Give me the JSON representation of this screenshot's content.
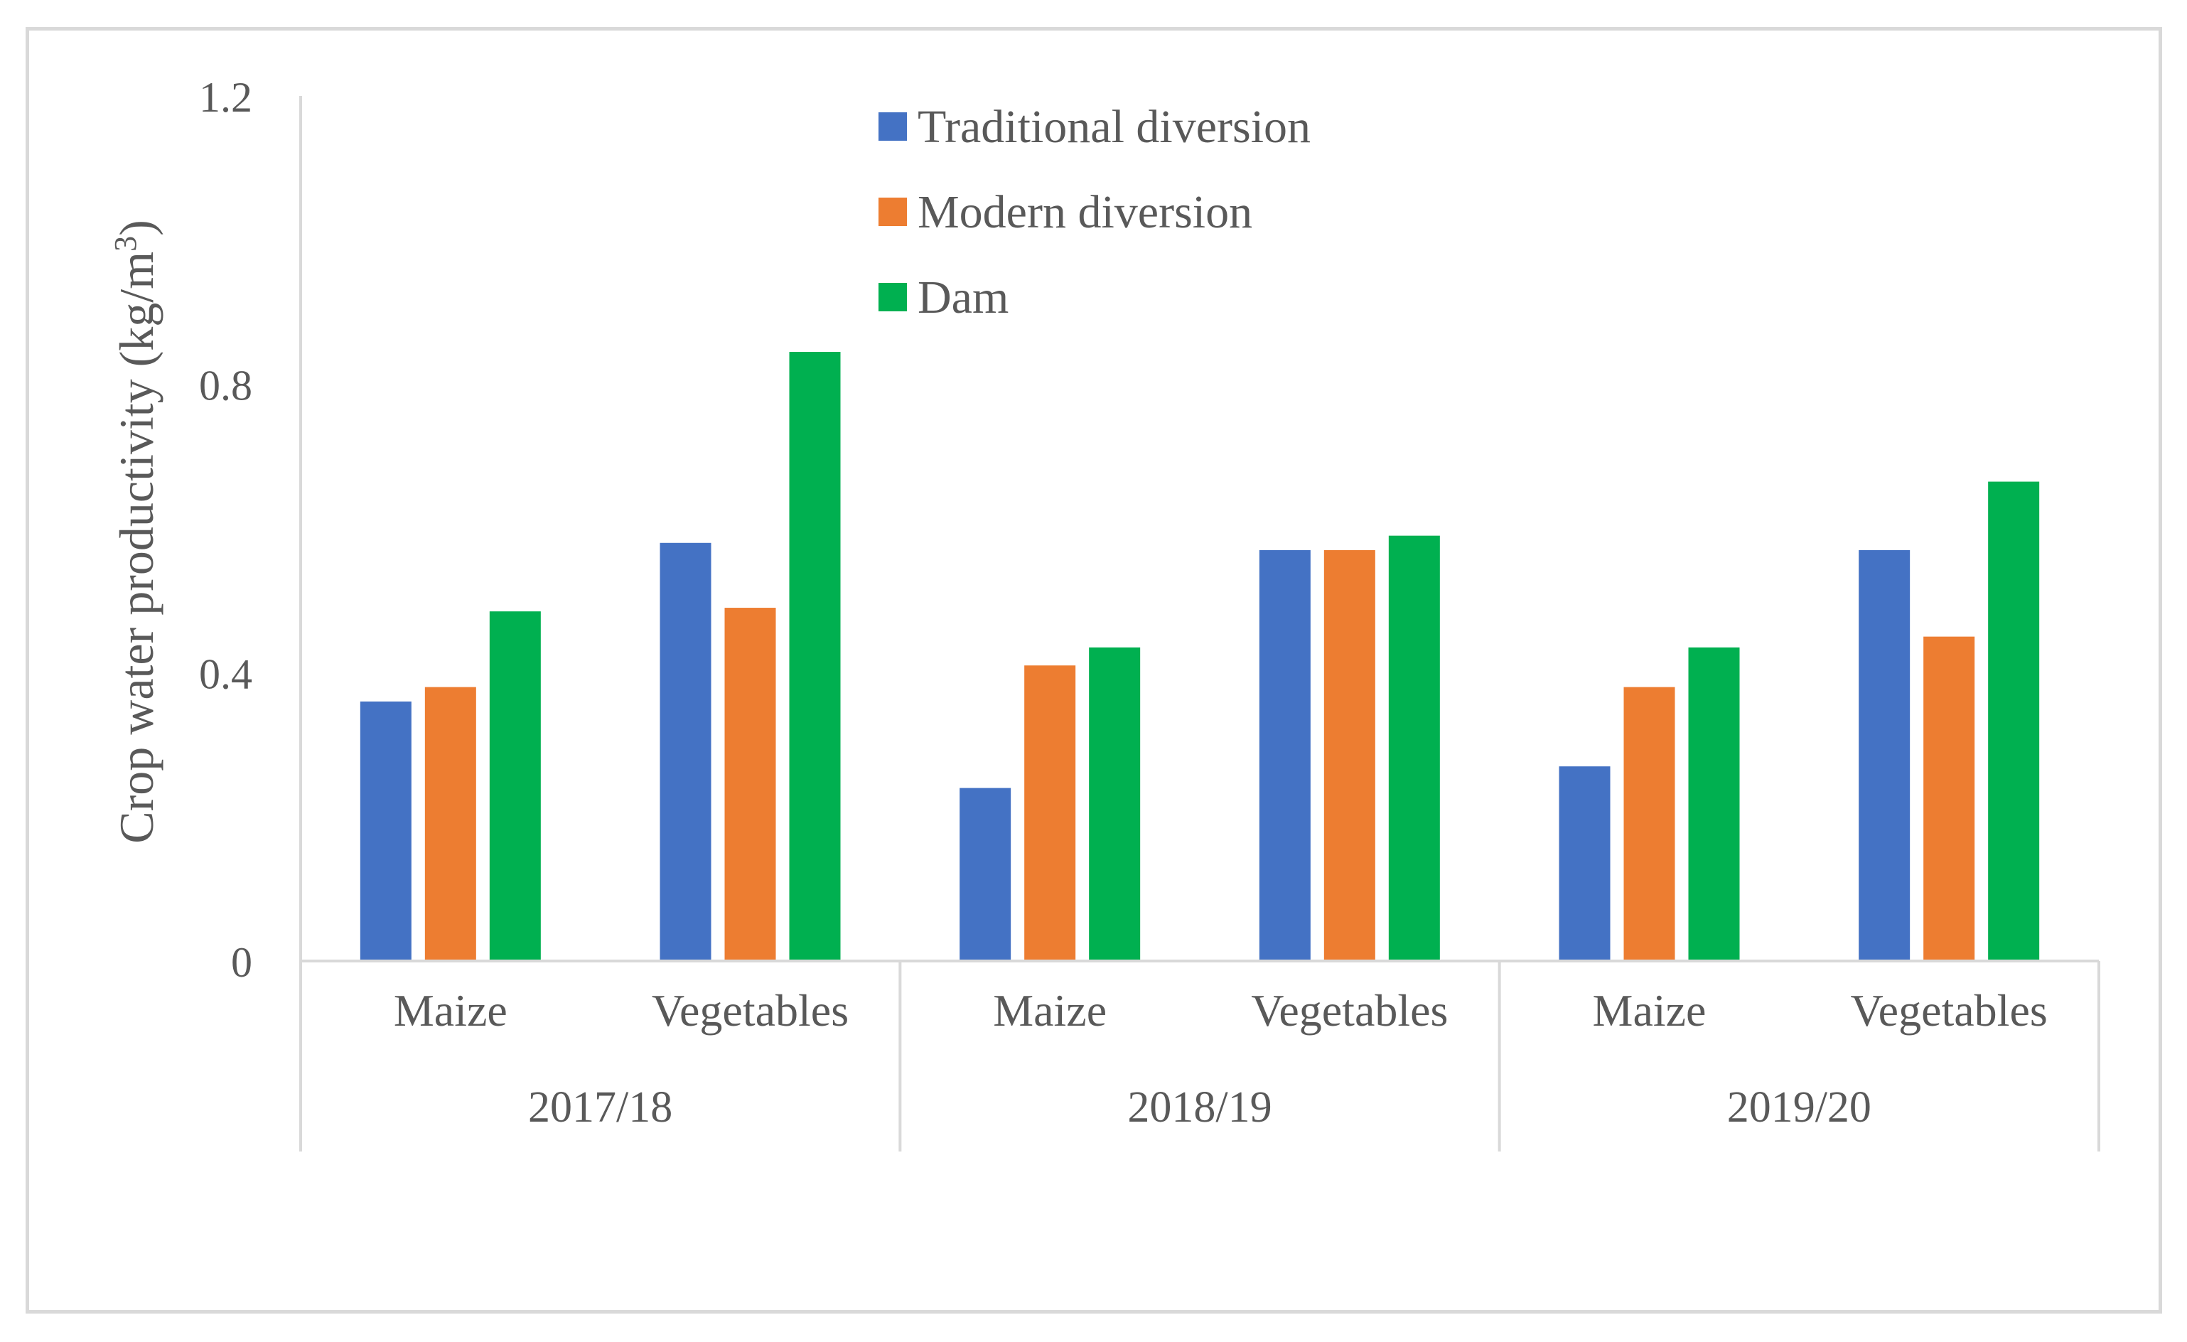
{
  "chart_data": {
    "type": "bar",
    "title": "",
    "ylabel": "Crop water productivity (kg/m",
    "ylabel_superscript": "3",
    "ylabel_suffix": ")",
    "xlabel": "",
    "ylim": [
      0,
      1.2
    ],
    "yticks": [
      "0",
      "0.4",
      "0.8",
      "1.2"
    ],
    "ytick_values": [
      0,
      0.4,
      0.8,
      1.2
    ],
    "grid": false,
    "legend_position": "top-center",
    "groups": [
      {
        "label": "2017/18",
        "categories": [
          "Maize",
          "Vegetables"
        ]
      },
      {
        "label": "2018/19",
        "categories": [
          "Maize",
          "Vegetables"
        ]
      },
      {
        "label": "2019/20",
        "categories": [
          "Maize",
          "Vegetables"
        ]
      }
    ],
    "series": [
      {
        "name": "Traditional diversion",
        "color": "#4472c4",
        "values": [
          0.36,
          0.58,
          0.24,
          0.57,
          0.27,
          0.57
        ]
      },
      {
        "name": "Modern diversion",
        "color": "#ed7d31",
        "values": [
          0.38,
          0.49,
          0.41,
          0.57,
          0.38,
          0.45
        ]
      },
      {
        "name": "Dam",
        "color": "#00b050",
        "values": [
          0.485,
          0.845,
          0.435,
          0.59,
          0.435,
          0.665
        ]
      }
    ]
  },
  "colors": {
    "axis": "#d9d9d9",
    "text": "#595959",
    "frame": "#d9d9d9"
  }
}
